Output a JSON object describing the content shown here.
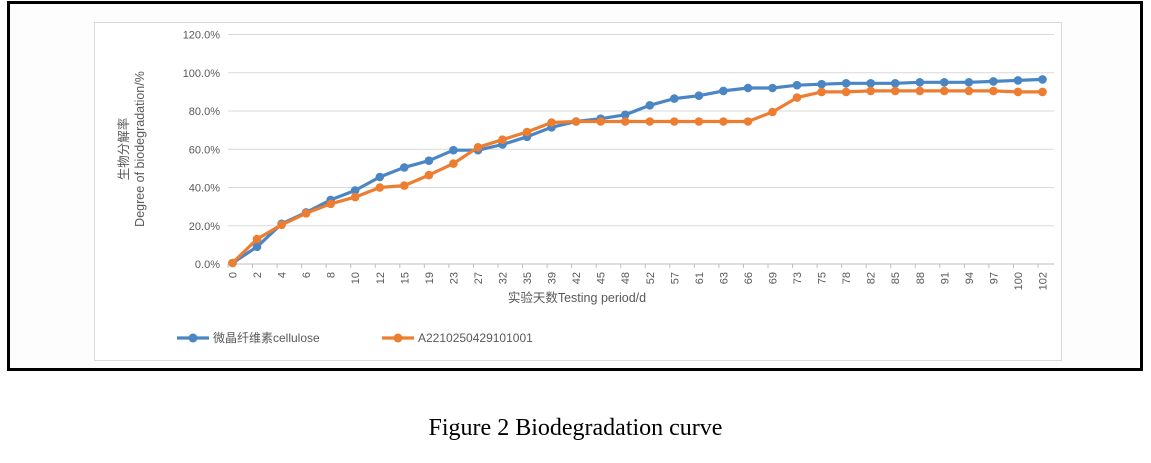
{
  "figure": {
    "caption": "Figure 2 Biodegradation curve"
  },
  "chart_data": {
    "type": "line",
    "title": "",
    "xlabel": "实验天数Testing period/d",
    "ylabel_line1": "生物分解率",
    "ylabel_line2": "Degree of biodegradation/%",
    "categories": [
      "0",
      "2",
      "4",
      "6",
      "8",
      "10",
      "12",
      "15",
      "19",
      "23",
      "27",
      "32",
      "35",
      "39",
      "42",
      "45",
      "48",
      "52",
      "57",
      "61",
      "63",
      "66",
      "69",
      "73",
      "75",
      "78",
      "82",
      "85",
      "88",
      "91",
      "94",
      "97",
      "100",
      "102"
    ],
    "series": [
      {
        "name": "微晶纤维素cellulose",
        "color": "#4A86C4",
        "values": [
          0.5,
          9,
          21,
          27,
          33.5,
          38.5,
          45.5,
          50.5,
          54,
          59.5,
          59.5,
          62.5,
          66.5,
          71.5,
          74.5,
          76,
          78,
          83,
          86.5,
          88,
          90.5,
          92,
          92,
          93.5,
          94,
          94.5,
          94.5,
          94.5,
          95,
          95,
          95,
          95.5,
          96,
          96.5
        ]
      },
      {
        "name": "A2210250429101001",
        "color": "#ED7D31",
        "values": [
          0.5,
          13,
          20.5,
          26.5,
          31.5,
          35,
          40,
          41,
          46.5,
          52.5,
          61,
          65,
          69,
          74,
          74.5,
          74.5,
          74.5,
          74.5,
          74.5,
          74.5,
          74.5,
          74.5,
          79.5,
          87,
          90,
          90,
          90.5,
          90.5,
          90.5,
          90.5,
          90.5,
          90.5,
          90,
          90
        ]
      }
    ],
    "y_ticks": [
      "0.0%",
      "20.0%",
      "40.0%",
      "60.0%",
      "80.0%",
      "100.0%",
      "120.0%"
    ],
    "ylim": [
      0,
      120
    ],
    "grid": true,
    "legend_position": "bottom"
  },
  "colors": {
    "grid": "#d9d9d9",
    "axis": "#bfbfbf",
    "tick_text": "#595959",
    "series_blue": "#4A86C4",
    "series_orange": "#ED7D31",
    "border": "#000000",
    "chart_border": "#d9d9d9"
  }
}
